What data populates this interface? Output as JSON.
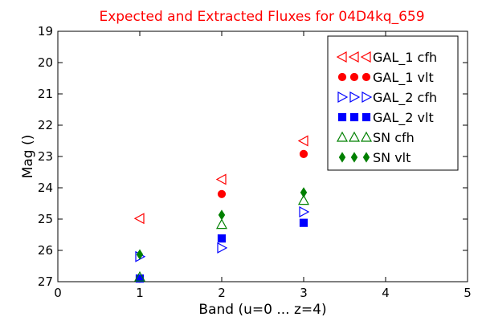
{
  "chart_data": {
    "type": "scatter",
    "title": "Expected and Extracted Fluxes for 04D4kq_659",
    "title_color": "#ff0000",
    "xlabel": "Band (u=0 ... z=4)",
    "ylabel": "Mag ()",
    "xlim": [
      0,
      5
    ],
    "ylim": [
      27,
      19
    ],
    "y_inverted": true,
    "x_ticks": [
      0,
      1,
      2,
      3,
      4,
      5
    ],
    "y_ticks": [
      19,
      20,
      21,
      22,
      23,
      24,
      25,
      26,
      27
    ],
    "grid": false,
    "legend_position": "top-right",
    "series": [
      {
        "name": "GAL_1 cfh",
        "marker": "triangle-left",
        "filled": false,
        "color": "#ff0000",
        "points": [
          {
            "x": 1,
            "y": 24.98
          },
          {
            "x": 2,
            "y": 23.73
          },
          {
            "x": 3,
            "y": 22.5
          }
        ]
      },
      {
        "name": "GAL_1 vlt",
        "marker": "circle",
        "filled": true,
        "color": "#ff0000",
        "points": [
          {
            "x": 1,
            "y": 26.9
          },
          {
            "x": 2,
            "y": 24.2
          },
          {
            "x": 3,
            "y": 22.92
          }
        ]
      },
      {
        "name": "GAL_2 cfh",
        "marker": "triangle-right",
        "filled": false,
        "color": "#0000ff",
        "points": [
          {
            "x": 1,
            "y": 26.2
          },
          {
            "x": 2,
            "y": 25.92
          },
          {
            "x": 3,
            "y": 24.77
          }
        ]
      },
      {
        "name": "GAL_2 vlt",
        "marker": "square",
        "filled": true,
        "color": "#0000ff",
        "points": [
          {
            "x": 1,
            "y": 26.9
          },
          {
            "x": 2,
            "y": 25.62
          },
          {
            "x": 3,
            "y": 25.12
          }
        ]
      },
      {
        "name": "SN cfh",
        "marker": "triangle-up",
        "filled": false,
        "color": "#008000",
        "points": [
          {
            "x": 1,
            "y": 26.85
          },
          {
            "x": 2,
            "y": 25.17
          },
          {
            "x": 3,
            "y": 24.4
          }
        ]
      },
      {
        "name": "SN vlt",
        "marker": "diamond",
        "filled": true,
        "color": "#008000",
        "points": [
          {
            "x": 1,
            "y": 26.13
          },
          {
            "x": 2,
            "y": 24.87
          },
          {
            "x": 3,
            "y": 24.15
          }
        ]
      }
    ]
  }
}
